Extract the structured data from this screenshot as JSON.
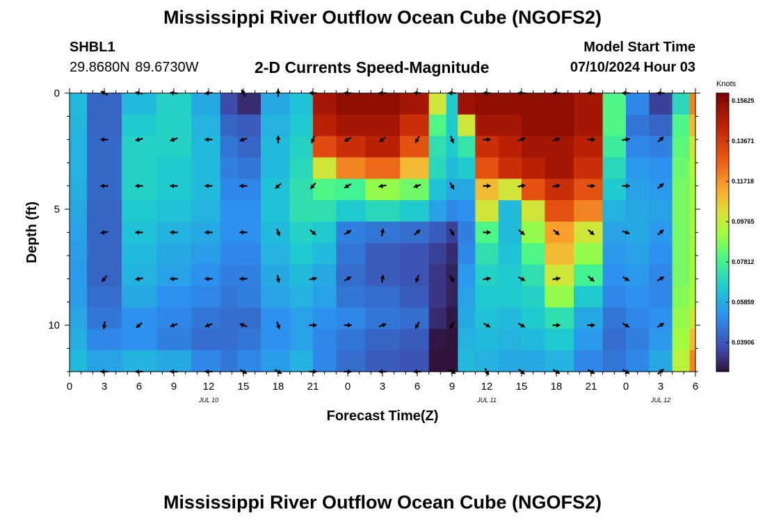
{
  "header": {
    "title": "Mississippi River Outflow Ocean Cube (NGOFS2)",
    "station_id": "SHBL1",
    "station_coords": "29.8680N  89.6730W",
    "subtitle": "2-D Currents Speed-Magnitude",
    "model_start_label": "Model Start Time",
    "model_start_time": "07/10/2024 Hour 03"
  },
  "footer": {
    "title": "Mississippi River Outflow Ocean Cube (NGOFS2)"
  },
  "chart_data": {
    "type": "heatmap",
    "title": "2-D Currents Speed-Magnitude",
    "xlabel": "Forecast Time(Z)",
    "ylabel": "Depth (ft)",
    "x_tick_labels": [
      "0",
      "3",
      "6",
      "9",
      "12",
      "15",
      "18",
      "21",
      "0",
      "3",
      "6",
      "9",
      "12",
      "15",
      "18",
      "21",
      "0",
      "3",
      "6"
    ],
    "x_range_hours": [
      0,
      54
    ],
    "date_labels": [
      {
        "text": "JUL 10",
        "hour": 12
      },
      {
        "text": "JUL 11",
        "hour": 36
      },
      {
        "text": "JUL 12",
        "hour": 51
      }
    ],
    "y_tick_labels": [
      "0",
      "5",
      "10"
    ],
    "y_ticks": [
      0,
      5,
      10
    ],
    "y_range": [
      0,
      12
    ],
    "y_inverted": true,
    "colorbar": {
      "unit": "Knots",
      "ticks": [
        "0.15625",
        "0.13671",
        "0.11718",
        "0.09765",
        "0.07812",
        "0.05859",
        "0.03906"
      ],
      "tick_values": [
        0.15625,
        0.13671,
        0.11718,
        0.09765,
        0.07812,
        0.05859,
        0.03906
      ],
      "range": [
        0.025,
        0.16
      ]
    },
    "columns": [
      {
        "hour": 0,
        "values": [
          0.062,
          0.061,
          0.06,
          0.06,
          0.059,
          0.058,
          0.056,
          0.055,
          0.054,
          0.055,
          0.057,
          0.059,
          0.062
        ]
      },
      {
        "hour": 3,
        "values": [
          0.042,
          0.042,
          0.043,
          0.043,
          0.043,
          0.042,
          0.042,
          0.042,
          0.042,
          0.044,
          0.046,
          0.05,
          0.056
        ]
      },
      {
        "hour": 6,
        "values": [
          0.062,
          0.066,
          0.068,
          0.068,
          0.068,
          0.066,
          0.064,
          0.062,
          0.06,
          0.058,
          0.052,
          0.052,
          0.06
        ]
      },
      {
        "hour": 9,
        "values": [
          0.068,
          0.068,
          0.068,
          0.066,
          0.066,
          0.064,
          0.06,
          0.058,
          0.056,
          0.052,
          0.05,
          0.048,
          0.058
        ]
      },
      {
        "hour": 12,
        "values": [
          0.058,
          0.06,
          0.062,
          0.062,
          0.062,
          0.06,
          0.058,
          0.055,
          0.052,
          0.05,
          0.046,
          0.044,
          0.05
        ]
      },
      {
        "hour": 14,
        "values": [
          0.036,
          0.042,
          0.046,
          0.048,
          0.05,
          0.052,
          0.052,
          0.05,
          0.048,
          0.046,
          0.044,
          0.044,
          0.046
        ]
      },
      {
        "hour": 15,
        "values": [
          0.03,
          0.04,
          0.042,
          0.046,
          0.05,
          0.052,
          0.052,
          0.05,
          0.048,
          0.048,
          0.044,
          0.046,
          0.05
        ]
      },
      {
        "hour": 18,
        "values": [
          0.058,
          0.06,
          0.062,
          0.062,
          0.064,
          0.064,
          0.062,
          0.06,
          0.058,
          0.056,
          0.052,
          0.052,
          0.055
        ]
      },
      {
        "hour": 20,
        "values": [
          0.064,
          0.066,
          0.068,
          0.07,
          0.072,
          0.072,
          0.068,
          0.066,
          0.062,
          0.06,
          0.056,
          0.056,
          0.06
        ]
      },
      {
        "hour": 22,
        "values": [
          0.15,
          0.145,
          0.132,
          0.1,
          0.08,
          0.072,
          0.066,
          0.062,
          0.058,
          0.056,
          0.052,
          0.05,
          0.05
        ]
      },
      {
        "hour": 24,
        "values": [
          0.155,
          0.15,
          0.14,
          0.12,
          0.078,
          0.066,
          0.048,
          0.046,
          0.044,
          0.046,
          0.05,
          0.046,
          0.044
        ]
      },
      {
        "hour": 27,
        "values": [
          0.155,
          0.15,
          0.145,
          0.125,
          0.09,
          0.07,
          0.046,
          0.04,
          0.04,
          0.044,
          0.046,
          0.042,
          0.04
        ]
      },
      {
        "hour": 30,
        "values": [
          0.15,
          0.14,
          0.13,
          0.11,
          0.085,
          0.066,
          0.044,
          0.038,
          0.038,
          0.04,
          0.044,
          0.04,
          0.038
        ]
      },
      {
        "hour": 32,
        "values": [
          0.1,
          0.08,
          0.072,
          0.07,
          0.064,
          0.056,
          0.04,
          0.034,
          0.032,
          0.032,
          0.03,
          0.026,
          0.024
        ]
      },
      {
        "hour": 33,
        "values": [
          0.066,
          0.066,
          0.066,
          0.062,
          0.058,
          0.05,
          0.034,
          0.03,
          0.028,
          0.028,
          0.026,
          0.024,
          0.024
        ]
      },
      {
        "hour": 34,
        "values": [
          0.152,
          0.1,
          0.074,
          0.066,
          0.058,
          0.052,
          0.048,
          0.05,
          0.054,
          0.056,
          0.058,
          0.06,
          0.062
        ]
      },
      {
        "hour": 36,
        "values": [
          0.155,
          0.15,
          0.14,
          0.13,
          0.11,
          0.1,
          0.08,
          0.072,
          0.068,
          0.066,
          0.064,
          0.062,
          0.06
        ]
      },
      {
        "hour": 38,
        "values": [
          0.155,
          0.15,
          0.145,
          0.14,
          0.1,
          0.062,
          0.062,
          0.064,
          0.066,
          0.066,
          0.062,
          0.06,
          0.058
        ]
      },
      {
        "hour": 40,
        "values": [
          0.155,
          0.155,
          0.15,
          0.145,
          0.13,
          0.1,
          0.09,
          0.08,
          0.072,
          0.068,
          0.066,
          0.062,
          0.058
        ]
      },
      {
        "hour": 42,
        "values": [
          0.155,
          0.155,
          0.15,
          0.15,
          0.14,
          0.13,
          0.115,
          0.11,
          0.1,
          0.09,
          0.072,
          0.066,
          0.06
        ]
      },
      {
        "hour": 45,
        "values": [
          0.15,
          0.15,
          0.145,
          0.14,
          0.13,
          0.12,
          0.1,
          0.09,
          0.078,
          0.066,
          0.058,
          0.054,
          0.05
        ]
      },
      {
        "hour": 47,
        "values": [
          0.08,
          0.08,
          0.076,
          0.07,
          0.066,
          0.06,
          0.056,
          0.054,
          0.052,
          0.05,
          0.046,
          0.044,
          0.046
        ]
      },
      {
        "hour": 49,
        "values": [
          0.05,
          0.046,
          0.05,
          0.054,
          0.056,
          0.058,
          0.058,
          0.056,
          0.054,
          0.052,
          0.05,
          0.048,
          0.05
        ]
      },
      {
        "hour": 51,
        "values": [
          0.034,
          0.042,
          0.048,
          0.052,
          0.054,
          0.056,
          0.054,
          0.052,
          0.05,
          0.05,
          0.052,
          0.054,
          0.058
        ]
      },
      {
        "hour": 53,
        "values": [
          0.07,
          0.08,
          0.082,
          0.084,
          0.086,
          0.086,
          0.086,
          0.086,
          0.086,
          0.088,
          0.09,
          0.092,
          0.096
        ]
      },
      {
        "hour": 54,
        "values": [
          0.12,
          0.11,
          0.1,
          0.095,
          0.092,
          0.092,
          0.092,
          0.092,
          0.092,
          0.094,
          0.1,
          0.11,
          0.12
        ]
      }
    ],
    "vectors": {
      "hours": [
        3,
        6,
        9,
        12,
        15,
        18,
        21,
        24,
        27,
        30,
        33,
        36,
        39,
        42,
        45,
        48,
        51
      ],
      "depths": [
        0,
        2,
        4,
        6,
        8,
        10,
        12
      ],
      "angles_deg": [
        [
          150,
          170,
          175,
          185,
          120,
          90,
          180,
          180,
          180,
          180,
          180,
          180,
          180,
          180,
          180,
          180,
          180
        ],
        [
          180,
          195,
          200,
          180,
          200,
          90,
          250,
          210,
          220,
          240,
          290,
          0,
          20,
          20,
          0,
          10,
          40
        ],
        [
          180,
          180,
          180,
          180,
          180,
          220,
          230,
          210,
          190,
          200,
          300,
          0,
          10,
          10,
          0,
          0,
          40
        ],
        [
          190,
          180,
          180,
          180,
          180,
          290,
          320,
          30,
          80,
          40,
          300,
          0,
          320,
          320,
          320,
          340,
          40
        ],
        [
          230,
          190,
          180,
          180,
          180,
          280,
          10,
          30,
          80,
          250,
          300,
          10,
          330,
          10,
          320,
          330,
          30
        ],
        [
          260,
          220,
          200,
          200,
          160,
          290,
          0,
          0,
          20,
          240,
          240,
          330,
          330,
          0,
          0,
          330,
          30
        ],
        [
          180,
          180,
          180,
          180,
          330,
          330,
          0,
          0,
          180,
          180,
          330,
          300,
          320,
          330,
          330,
          330,
          40
        ]
      ]
    }
  }
}
